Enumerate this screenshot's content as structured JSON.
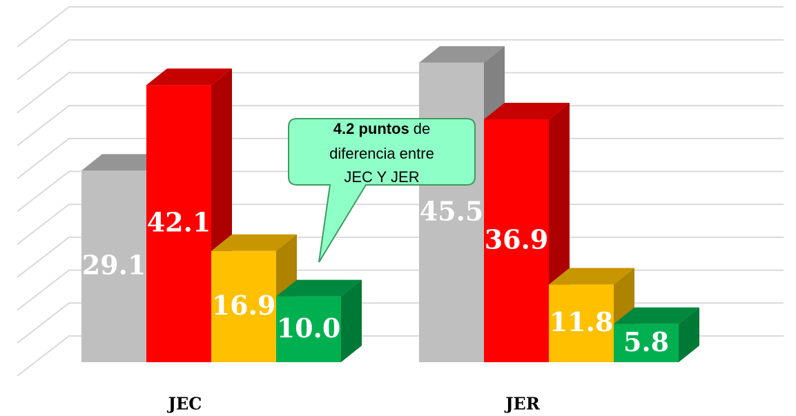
{
  "chart_data": {
    "type": "bar3d",
    "categories": [
      "JEC",
      "JER"
    ],
    "series": [
      {
        "color": "#bfbfbf",
        "values": [
          29.1,
          45.5
        ],
        "value_labels": [
          "29.1",
          "45.5"
        ]
      },
      {
        "color": "#ff0000",
        "values": [
          42.1,
          36.9
        ],
        "value_labels": [
          "42.1",
          "36.9"
        ]
      },
      {
        "color": "#ffc000",
        "values": [
          16.9,
          11.8
        ],
        "value_labels": [
          "16.9",
          "11.8"
        ]
      },
      {
        "color": "#00b050",
        "values": [
          10.0,
          5.8
        ],
        "value_labels": [
          "10.0",
          "5.8"
        ]
      }
    ],
    "ylim": [
      0,
      50
    ],
    "yticks": [
      0,
      5,
      10,
      15,
      20,
      25,
      30,
      35,
      40,
      45,
      50
    ],
    "grid": true,
    "annotation": {
      "bold": "4.2 puntos",
      "lines": [
        "de",
        "diferencia entre",
        "JEC Y JER"
      ]
    }
  }
}
